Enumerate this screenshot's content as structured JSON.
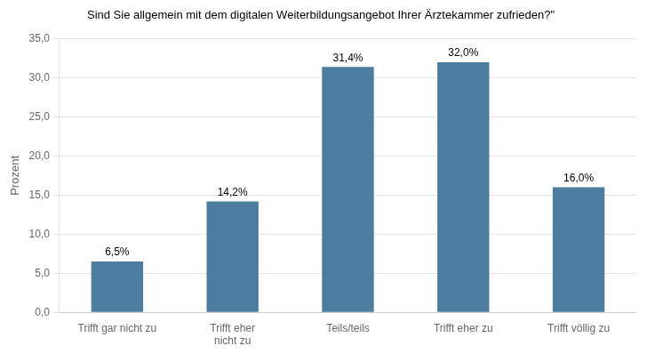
{
  "chart_data": {
    "type": "bar",
    "title": "Sind Sie allgemein mit dem digitalen Weiterbildungsangebot Ihrer Ärztekammer zufrieden?\"",
    "categories": [
      "Trifft gar nicht zu",
      "Trifft eher\nnicht zu",
      "Teils/teils",
      "Trifft eher zu",
      "Trifft völlig zu"
    ],
    "values": [
      6.5,
      14.2,
      31.4,
      32.0,
      16.0
    ],
    "value_labels": [
      "6,5%",
      "14,2%",
      "31,4%",
      "32,0%",
      "16,0%"
    ],
    "data_labels": true,
    "color": "#4d7d9e",
    "ylabel": "Prozent",
    "ylim": [
      0,
      35
    ],
    "yticks": [
      {
        "value": 0.0,
        "label": "0,0"
      },
      {
        "value": 5.0,
        "label": "5,0"
      },
      {
        "value": 10.0,
        "label": "10,0"
      },
      {
        "value": 15.0,
        "label": "15,0"
      },
      {
        "value": 20.0,
        "label": "20,0"
      },
      {
        "value": 25.0,
        "label": "25,0"
      },
      {
        "value": 30.0,
        "label": "30,0"
      },
      {
        "value": 35.0,
        "label": "35,0"
      }
    ],
    "grid": true
  }
}
